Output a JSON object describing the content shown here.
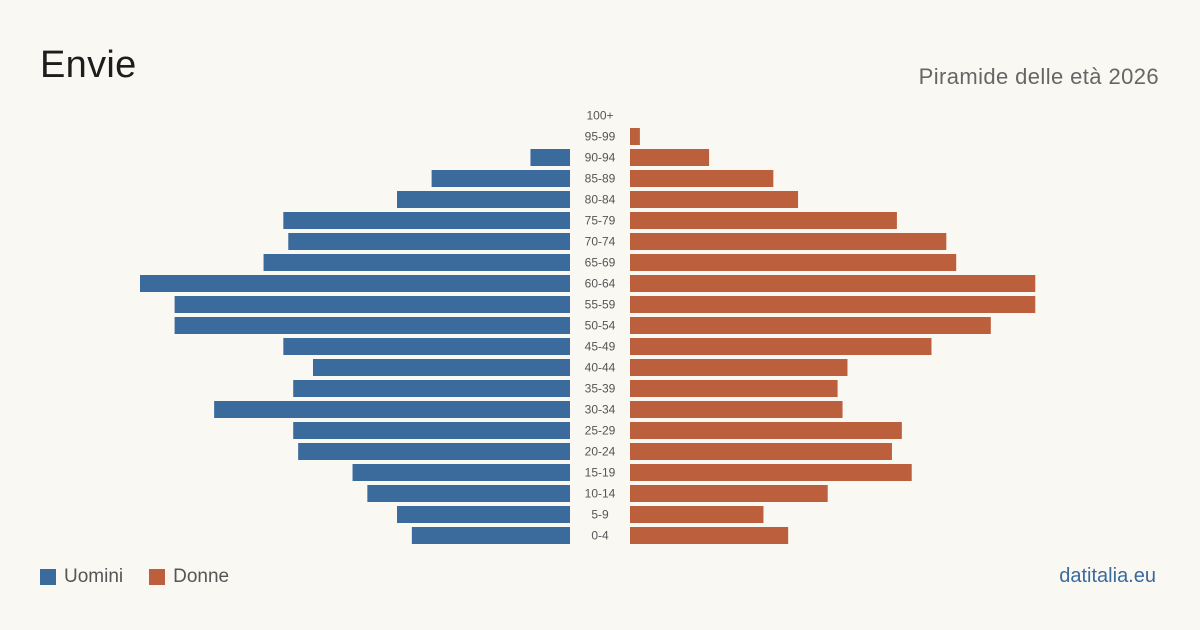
{
  "header": {
    "title": "Envie",
    "subtitle": "Piramide delle età 2026"
  },
  "legend": {
    "men_label": "Uomini",
    "women_label": "Donne"
  },
  "source": "datitalia.eu",
  "colors": {
    "men": "#3b6a9c",
    "women": "#bc5f3c",
    "background": "#faf8f3",
    "age_label": "#555555"
  },
  "chart_data": {
    "type": "bar",
    "orientation": "horizontal",
    "layout": "population-pyramid",
    "categories": [
      "100+",
      "95-99",
      "90-94",
      "85-89",
      "80-84",
      "75-79",
      "70-74",
      "65-69",
      "60-64",
      "55-59",
      "50-54",
      "45-49",
      "40-44",
      "35-39",
      "30-34",
      "25-29",
      "20-24",
      "15-19",
      "10-14",
      "5-9",
      "0-4"
    ],
    "series": [
      {
        "name": "Uomini",
        "values": [
          0,
          0,
          8,
          28,
          35,
          58,
          57,
          62,
          87,
          80,
          80,
          58,
          52,
          56,
          72,
          56,
          55,
          44,
          41,
          35,
          32
        ]
      },
      {
        "name": "Donne",
        "values": [
          0,
          2,
          16,
          29,
          34,
          54,
          64,
          66,
          82,
          82,
          73,
          61,
          44,
          42,
          43,
          55,
          53,
          57,
          40,
          27,
          32
        ]
      }
    ],
    "xlabel": "",
    "ylabel": "",
    "grid": false,
    "legend_position": "bottom-left"
  }
}
